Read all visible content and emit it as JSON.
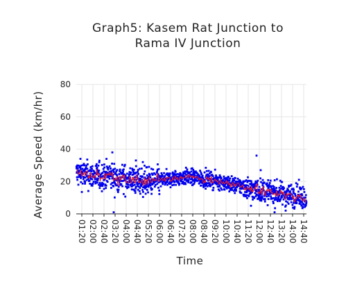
{
  "chart_data": {
    "type": "scatter",
    "title_lines": [
      "Graph5: Kasem Rat Junction to",
      "Rama IV Junction"
    ],
    "xlabel": "Time",
    "ylabel": "Average Speed (km/hr)",
    "ylim": [
      0,
      80
    ],
    "yticks": [
      "0",
      "20",
      "40",
      "60",
      "80"
    ],
    "xlim": [
      "01:00",
      "14:50"
    ],
    "xticks": [
      "01:20",
      "02:00",
      "02:40",
      "03:20",
      "04:00",
      "04:40",
      "05:20",
      "06:00",
      "06:40",
      "07:20",
      "08:00",
      "08:40",
      "09:20",
      "10:00",
      "10:40",
      "11:20",
      "12:00",
      "12:40",
      "13:20",
      "14:00",
      "14:40"
    ],
    "grid": true,
    "legend": "none",
    "series": [
      {
        "kind": "points",
        "color": "#0000ee",
        "trend": [
          [
            "01:00",
            25
          ],
          [
            "01:40",
            24
          ],
          [
            "02:20",
            23
          ],
          [
            "03:00",
            24
          ],
          [
            "03:20",
            22
          ],
          [
            "03:40",
            22
          ],
          [
            "04:20",
            21
          ],
          [
            "05:00",
            20
          ],
          [
            "05:40",
            20
          ],
          [
            "06:20",
            21
          ],
          [
            "07:00",
            22
          ],
          [
            "07:40",
            23
          ],
          [
            "08:20",
            22
          ],
          [
            "09:00",
            21
          ],
          [
            "09:40",
            20
          ],
          [
            "10:20",
            18
          ],
          [
            "11:00",
            17
          ],
          [
            "11:40",
            15
          ],
          [
            "12:20",
            14
          ],
          [
            "13:00",
            13
          ],
          [
            "13:40",
            12
          ],
          [
            "14:20",
            11
          ],
          [
            "14:50",
            10
          ]
        ],
        "spread_before_06": 6,
        "spread_after_06": 3.5,
        "spread_after_11": 5,
        "outliers": [
          [
            "03:10",
            38
          ],
          [
            "03:15",
            1
          ],
          [
            "04:35",
            33
          ],
          [
            "05:00",
            32
          ],
          [
            "11:50",
            36
          ],
          [
            "12:05",
            27
          ],
          [
            "01:15",
            34
          ],
          [
            "13:35",
            2
          ],
          [
            "12:55",
            1
          ],
          [
            "11:30",
            5
          ]
        ]
      },
      {
        "kind": "moving-average-line",
        "color": "#ee2222"
      }
    ]
  }
}
